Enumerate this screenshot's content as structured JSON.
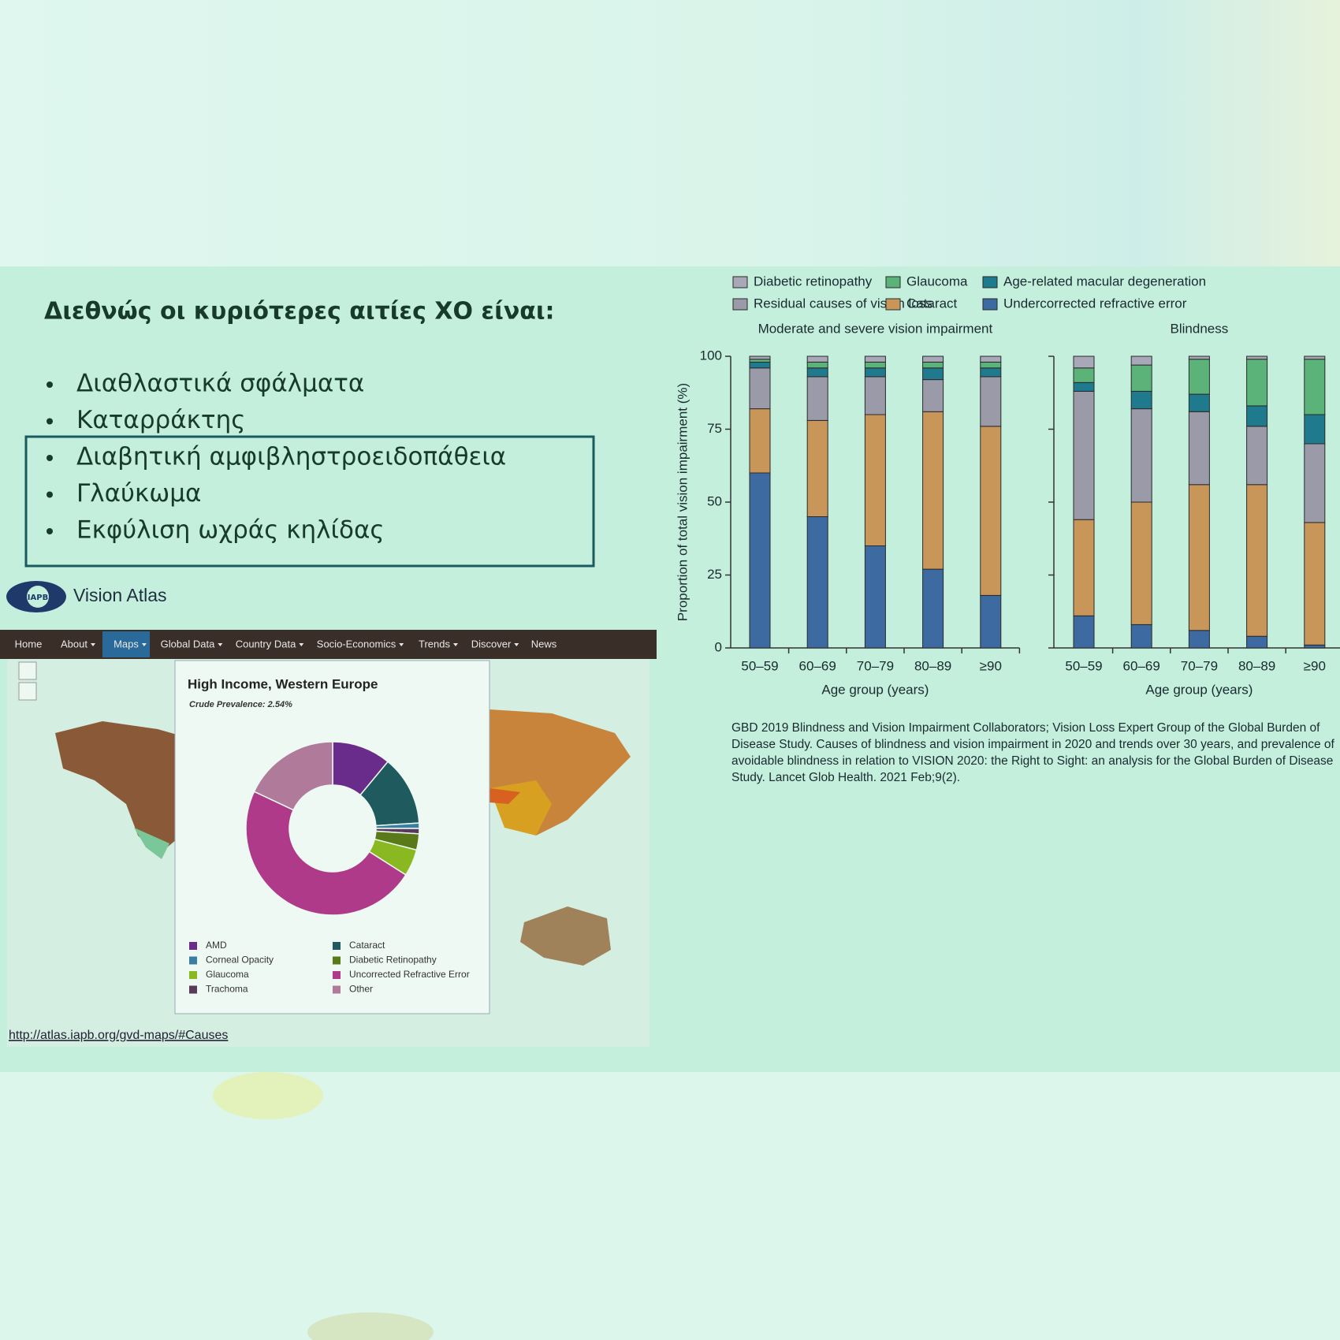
{
  "slide": {
    "title": "Διεθνώς οι κυριότερες αιτίες ΧΟ είναι:",
    "bullets": [
      "Διαθλαστικά σφάλματα",
      "Καταρράκτης",
      "Διαβητική αμφιβληστροειδοπάθεια",
      "Γλαύκωμα",
      "Εκφύλιση ωχράς κηλίδας"
    ],
    "citation": "GBD 2019 Blindness and Vision Impairment Collaborators; Vision Loss Expert Group of the Global Burden of Disease Study. Causes of blindness and vision impairment in 2020 and trends over 30 years, and prevalence of avoidable blindness in relation to VISION 2020: the Right to Sight: an analysis for the Global Burden of Disease Study. Lancet Glob Health. 2021 Feb;9(2)."
  },
  "atlas": {
    "logo": "IAPB",
    "brand": "Vision Atlas",
    "nav": [
      {
        "label": "Home",
        "dropdown": false
      },
      {
        "label": "About",
        "dropdown": true
      },
      {
        "label": "Maps",
        "dropdown": true,
        "active": true
      },
      {
        "label": "Global Data",
        "dropdown": true
      },
      {
        "label": "Country Data",
        "dropdown": true
      },
      {
        "label": "Socio-Economics",
        "dropdown": true
      },
      {
        "label": "Trends",
        "dropdown": true
      },
      {
        "label": "Discover",
        "dropdown": true
      },
      {
        "label": "News",
        "dropdown": false
      }
    ],
    "url": "http://atlas.iapb.org/gvd-maps/#Causes"
  },
  "chart_data": [
    {
      "type": "stacked_bar",
      "title": "Moderate and severe vision impairment",
      "x_label": "Age group (years)",
      "y_label": "Proportion of total vision impairment (%)",
      "categories": [
        "50–59",
        "60–69",
        "70–79",
        "80–89",
        "≥90"
      ],
      "series": [
        {
          "name": "Diabetic retinopathy",
          "color": "#a8a8b8",
          "values": [
            1,
            2,
            2,
            2,
            2
          ]
        },
        {
          "name": "Glaucoma",
          "color": "#5bb37a",
          "values": [
            1,
            2,
            2,
            2,
            2
          ]
        },
        {
          "name": "Age-related macular degeneration",
          "color": "#1e7a8c",
          "values": [
            2,
            3,
            3,
            4,
            3
          ]
        },
        {
          "name": "Residual causes of vision loss",
          "color": "#9a9aa8",
          "values": [
            14,
            15,
            13,
            11,
            17
          ]
        },
        {
          "name": "Cataract",
          "color": "#c9965a",
          "values": [
            22,
            33,
            45,
            54,
            58
          ]
        },
        {
          "name": "Undercorrected refractive error",
          "color": "#3d6aa0",
          "values": [
            60,
            45,
            35,
            27,
            18
          ]
        }
      ],
      "ylim": [
        0,
        100
      ],
      "yticks": [
        0,
        25,
        50,
        75,
        100
      ]
    },
    {
      "type": "stacked_bar",
      "title": "Blindness",
      "x_label": "Age group (years)",
      "categories": [
        "50–59",
        "60–69",
        "70–79",
        "80–89",
        "≥90"
      ],
      "series": [
        {
          "color": "#a8a8b8",
          "values": [
            4,
            3,
            1,
            1,
            1
          ]
        },
        {
          "color": "#5bb37a",
          "values": [
            5,
            9,
            12,
            16,
            19
          ]
        },
        {
          "color": "#1e7a8c",
          "values": [
            3,
            6,
            6,
            7,
            10
          ]
        },
        {
          "color": "#9a9aa8",
          "values": [
            44,
            32,
            25,
            20,
            27
          ]
        },
        {
          "color": "#c9965a",
          "values": [
            33,
            42,
            50,
            52,
            42
          ]
        },
        {
          "color": "#3d6aa0",
          "values": [
            11,
            8,
            6,
            4,
            1
          ]
        }
      ],
      "ylim": [
        0,
        100
      ]
    },
    {
      "type": "donut",
      "title": "High Income, Western Europe",
      "subtitle": "Crude Prevalence: 2.54%",
      "categories": [
        "AMD",
        "Cataract",
        "Corneal Opacity",
        "Trachoma",
        "Diabetic Retinopathy",
        "Glaucoma",
        "Uncorrected Refractive Error",
        "Other"
      ],
      "values": [
        11,
        13,
        1,
        1,
        3,
        5,
        48,
        18
      ],
      "colors": [
        "#6a2c8a",
        "#1f5a5e",
        "#3a7fa0",
        "#5a3a5a",
        "#5a7a1a",
        "#8ab820",
        "#b03a8a",
        "#b07a9a"
      ]
    }
  ]
}
